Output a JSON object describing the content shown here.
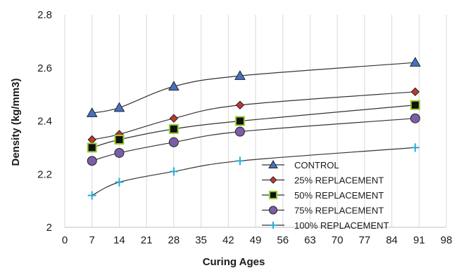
{
  "chart_data": {
    "type": "line",
    "xlabel": "Curing Ages",
    "ylabel": "Density  (kg/mm3)",
    "xlim": [
      0,
      98
    ],
    "ylim": [
      2,
      2.8
    ],
    "x_ticks": [
      0,
      7,
      14,
      21,
      28,
      35,
      42,
      49,
      56,
      63,
      70,
      77,
      84,
      91,
      98
    ],
    "x_tick_labels": [
      "0",
      "7",
      "14",
      "21",
      "28",
      "35",
      "42",
      "49",
      "56",
      "63",
      "70",
      "77",
      "84",
      "91",
      "98"
    ],
    "y_ticks": [
      2,
      2.2,
      2.4,
      2.6,
      2.8
    ],
    "y_tick_labels": [
      "2",
      "2.2",
      "2.4",
      "2.6",
      "2.8"
    ],
    "grid": "vertical gridlines only",
    "legend_position": "bottom-right, inside plot",
    "x": [
      7,
      14,
      28,
      45,
      90
    ],
    "series": [
      {
        "name": "CONTROL",
        "marker": "triangle",
        "marker_color": "#4472c4",
        "values": [
          2.43,
          2.45,
          2.53,
          2.57,
          2.62
        ]
      },
      {
        "name": "25% REPLACEMENT",
        "marker": "diamond",
        "marker_color": "#c0392b",
        "values": [
          2.33,
          2.35,
          2.41,
          2.46,
          2.51
        ]
      },
      {
        "name": "50% REPLACEMENT",
        "marker": "square",
        "marker_color": "#9acd32",
        "values": [
          2.3,
          2.33,
          2.37,
          2.4,
          2.46
        ]
      },
      {
        "name": "75% REPLACEMENT",
        "marker": "circle",
        "marker_color": "#7b5ea7",
        "values": [
          2.25,
          2.28,
          2.32,
          2.36,
          2.41
        ]
      },
      {
        "name": "100% REPLACEMENT",
        "marker": "plus",
        "marker_color": "#2ea8d5",
        "values": [
          2.12,
          2.17,
          2.21,
          2.25,
          2.3
        ]
      }
    ]
  }
}
